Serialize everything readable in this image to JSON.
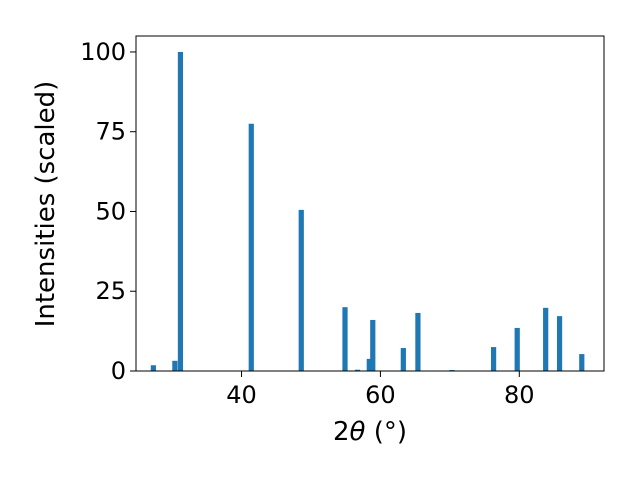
{
  "chart_data": {
    "type": "bar",
    "xlabel_prefix": "2",
    "xlabel_symbol": "θ",
    "xlabel_unit": " (°)",
    "ylabel": "Intensities (scaled)",
    "xlim": [
      24.8,
      92.2
    ],
    "ylim": [
      0,
      105
    ],
    "xticks": [
      40,
      60,
      80
    ],
    "yticks": [
      0,
      25,
      50,
      75,
      100
    ],
    "grid": false,
    "bar_color": "#1f77b4",
    "bar_width_deg": 0.75,
    "x": [
      27.3,
      30.4,
      31.2,
      41.4,
      48.6,
      54.9,
      56.7,
      58.4,
      58.9,
      63.3,
      65.4,
      70.3,
      76.3,
      79.7,
      83.8,
      85.8,
      89.0
    ],
    "values": [
      1.8,
      3.2,
      100,
      77.5,
      50.5,
      20.0,
      0.4,
      3.8,
      16.0,
      7.2,
      18.2,
      0.3,
      7.5,
      13.5,
      19.8,
      17.2,
      5.3
    ]
  }
}
